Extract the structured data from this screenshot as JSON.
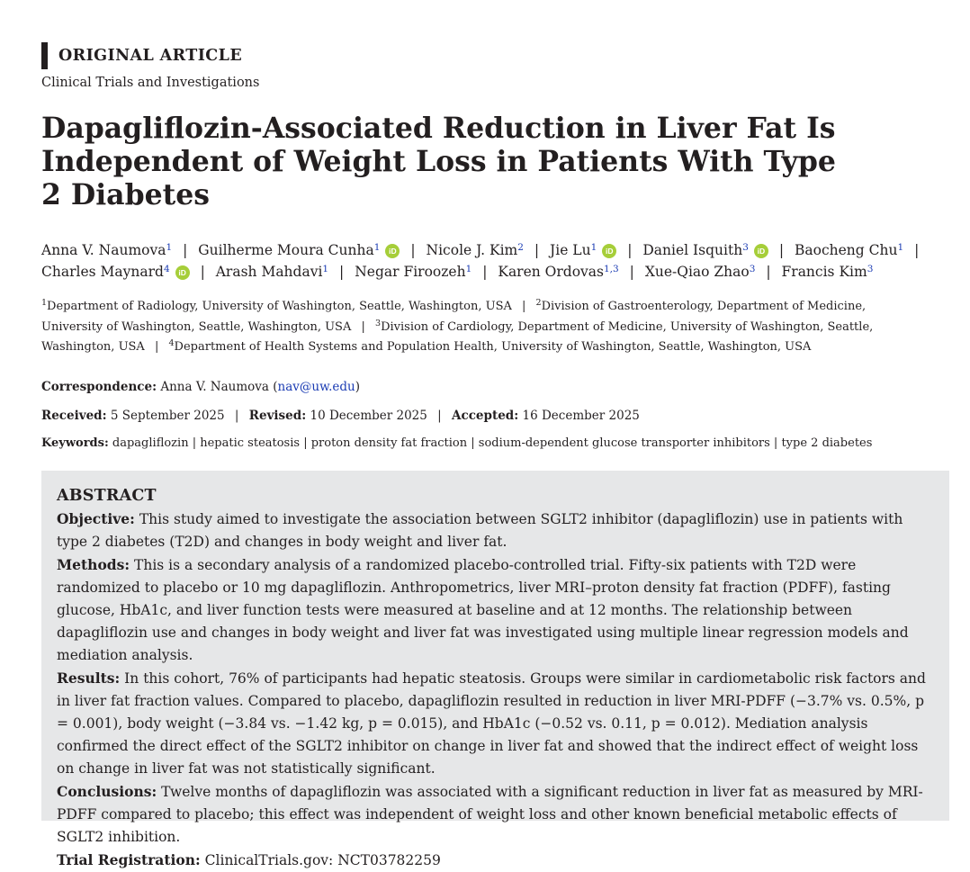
{
  "article_type": "ORIGINAL ARTICLE",
  "section": "Clinical Trials and Investigations",
  "title": "Dapagliflozin-Associated Reduction in Liver Fat Is Independent of Weight Loss in Patients With Type 2 Diabetes",
  "authors": [
    {
      "name": "Anna V. Naumova",
      "aff": "1",
      "orcid": false
    },
    {
      "name": "Guilherme Moura Cunha",
      "aff": "1",
      "orcid": true
    },
    {
      "name": "Nicole J. Kim",
      "aff": "2",
      "orcid": false
    },
    {
      "name": "Jie Lu",
      "aff": "1",
      "orcid": true
    },
    {
      "name": "Daniel Isquith",
      "aff": "3",
      "orcid": true
    },
    {
      "name": "Baocheng Chu",
      "aff": "1",
      "orcid": false
    },
    {
      "name": "Charles Maynard",
      "aff": "4",
      "orcid": true
    },
    {
      "name": "Arash Mahdavi",
      "aff": "1",
      "orcid": false
    },
    {
      "name": "Negar Firoozeh",
      "aff": "1",
      "orcid": false
    },
    {
      "name": "Karen Ordovas",
      "aff": "1,3",
      "orcid": false
    },
    {
      "name": "Xue-Qiao Zhao",
      "aff": "3",
      "orcid": false
    },
    {
      "name": "Francis Kim",
      "aff": "3",
      "orcid": false
    }
  ],
  "orcid_label": "iD",
  "affiliations": [
    {
      "num": "1",
      "text": "Department of Radiology, University of Washington, Seattle, Washington, USA"
    },
    {
      "num": "2",
      "text": "Division of Gastroenterology, Department of Medicine, University of Washington, Seattle, Washington, USA"
    },
    {
      "num": "3",
      "text": "Division of Cardiology, Department of Medicine, University of Washington, Seattle, Washington, USA"
    },
    {
      "num": "4",
      "text": "Department of Health Systems and Population Health, University of Washington, Seattle, Washington, USA"
    }
  ],
  "correspondence": {
    "label": "Correspondence:",
    "name": "Anna V. Naumova",
    "email": "nav@uw.edu"
  },
  "dates": {
    "received_label": "Received:",
    "received": "5 September 2025",
    "revised_label": "Revised:",
    "revised": "10 December 2025",
    "accepted_label": "Accepted:",
    "accepted": "16 December 2025"
  },
  "keywords": {
    "label": "Keywords:",
    "items": [
      "dapagliflozin",
      "hepatic steatosis",
      "proton density fat fraction",
      "sodium-dependent glucose transporter inhibitors",
      "type 2 diabetes"
    ]
  },
  "abstract": {
    "heading": "ABSTRACT",
    "objective_label": "Objective:",
    "objective": "This study aimed to investigate the association between SGLT2 inhibitor (dapagliflozin) use in patients with type 2 diabetes (T2D) and changes in body weight and liver fat.",
    "methods_label": "Methods:",
    "methods": "This is a secondary analysis of a randomized placebo-controlled trial. Fifty-six patients with T2D were randomized to placebo or 10 mg dapagliflozin. Anthropometrics, liver MRI–proton density fat fraction (PDFF), fasting glucose, HbA1c, and liver function tests were measured at baseline and at 12 months. The relationship between dapagliflozin use and changes in body weight and liver fat was investigated using multiple linear regression models and mediation analysis.",
    "results_label": "Results:",
    "results": "In this cohort, 76% of participants had hepatic steatosis. Groups were similar in cardiometabolic risk factors and in liver fat fraction values. Compared to placebo, dapagliflozin resulted in reduction in liver MRI-PDFF (−3.7% vs. 0.5%, p = 0.001), body weight (−3.84 vs. −1.42 kg, p = 0.015), and HbA1c (−0.52 vs. 0.11, p = 0.012). Mediation analysis confirmed the direct effect of the SGLT2 inhibitor on change in liver fat and showed that the indirect effect of weight loss on change in liver fat was not statistically significant.",
    "conclusions_label": "Conclusions:",
    "conclusions": "Twelve months of dapagliflozin was associated with a significant reduction in liver fat as measured by MRI-PDFF compared to placebo; this effect was independent of weight loss and other known beneficial metabolic effects of SGLT2 inhibition.",
    "registration_label": "Trial Registration:",
    "registration": "ClinicalTrials.gov: NCT03782259"
  }
}
